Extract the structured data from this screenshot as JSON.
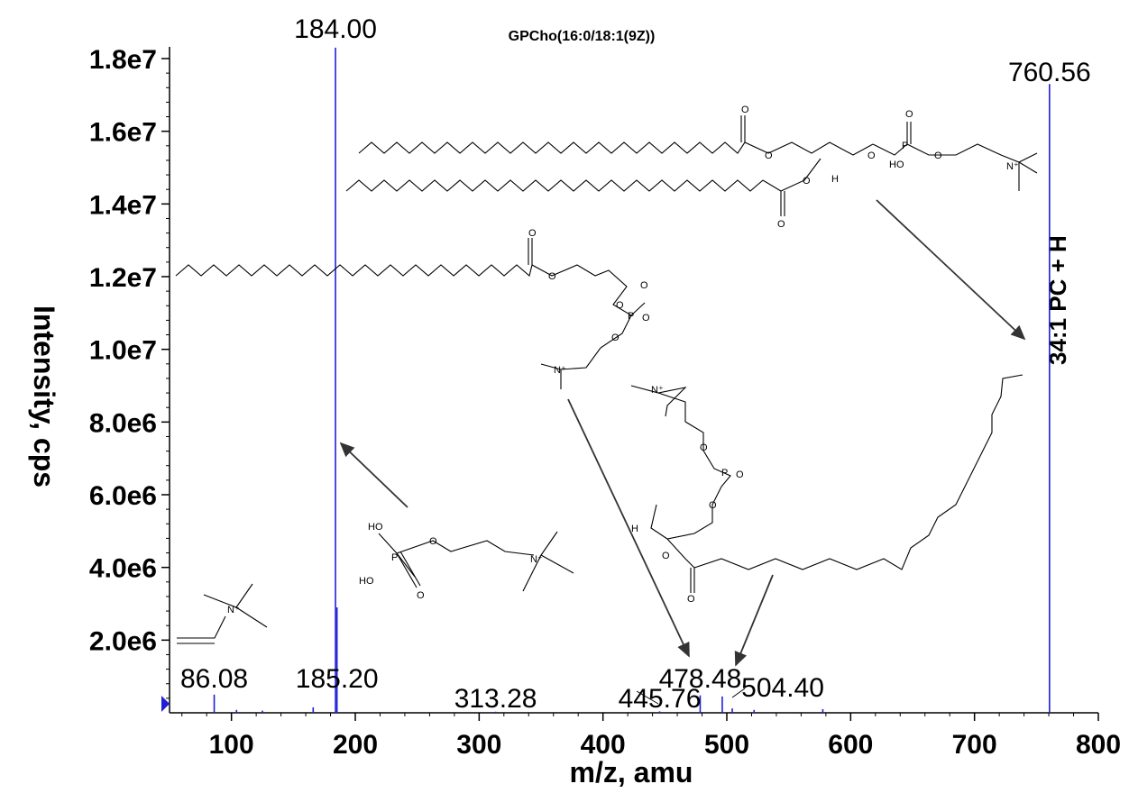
{
  "chart_data": {
    "type": "bar",
    "title": "GPCho(16:0/18:1(9Z))",
    "xlabel": "m/z, amu",
    "ylabel": "Intensity, cps",
    "xlim": [
      50,
      800
    ],
    "ylim": [
      0,
      18000000
    ],
    "xticks": [
      100,
      200,
      300,
      400,
      500,
      600,
      700,
      800
    ],
    "xtick_labels": [
      "100",
      "200",
      "300",
      "400",
      "500",
      "600",
      "700",
      "800"
    ],
    "yticks": [
      2000000,
      4000000,
      6000000,
      8000000,
      10000000,
      12000000,
      14000000,
      16000000,
      18000000
    ],
    "ytick_labels": [
      "2.0e6",
      "4.0e6",
      "6.0e6",
      "8.0e6",
      "1.0e7",
      "1.2e7",
      "1.4e7",
      "1.6e7",
      "1.8e7"
    ],
    "series_color": "#1f1fd6",
    "peaks": [
      {
        "mz": 86.08,
        "intensity": 500000
      },
      {
        "mz": 104.1,
        "intensity": 80000
      },
      {
        "mz": 125.0,
        "intensity": 60000
      },
      {
        "mz": 166.0,
        "intensity": 150000
      },
      {
        "mz": 184.0,
        "intensity": 18300000
      },
      {
        "mz": 185.2,
        "intensity": 2900000
      },
      {
        "mz": 313.28,
        "intensity": 30000
      },
      {
        "mz": 445.76,
        "intensity": 40000
      },
      {
        "mz": 478.48,
        "intensity": 480000
      },
      {
        "mz": 496.3,
        "intensity": 450000
      },
      {
        "mz": 504.4,
        "intensity": 120000
      },
      {
        "mz": 522.0,
        "intensity": 80000
      },
      {
        "mz": 577.5,
        "intensity": 100000
      },
      {
        "mz": 760.56,
        "intensity": 17300000
      }
    ],
    "peak_labels": [
      {
        "text": "184.00",
        "mz": 184.0
      },
      {
        "text": "760.56",
        "mz": 760.56
      },
      {
        "text": "86.08",
        "mz": 86.08
      },
      {
        "text": "185.20",
        "mz": 185.2
      },
      {
        "text": "313.28",
        "mz": 313.28
      },
      {
        "text": "445.76",
        "mz": 445.76
      },
      {
        "text": "478.48",
        "mz": 478.48
      },
      {
        "text": "504.40",
        "mz": 504.4
      }
    ],
    "annotation": "34:1 PC + H"
  }
}
